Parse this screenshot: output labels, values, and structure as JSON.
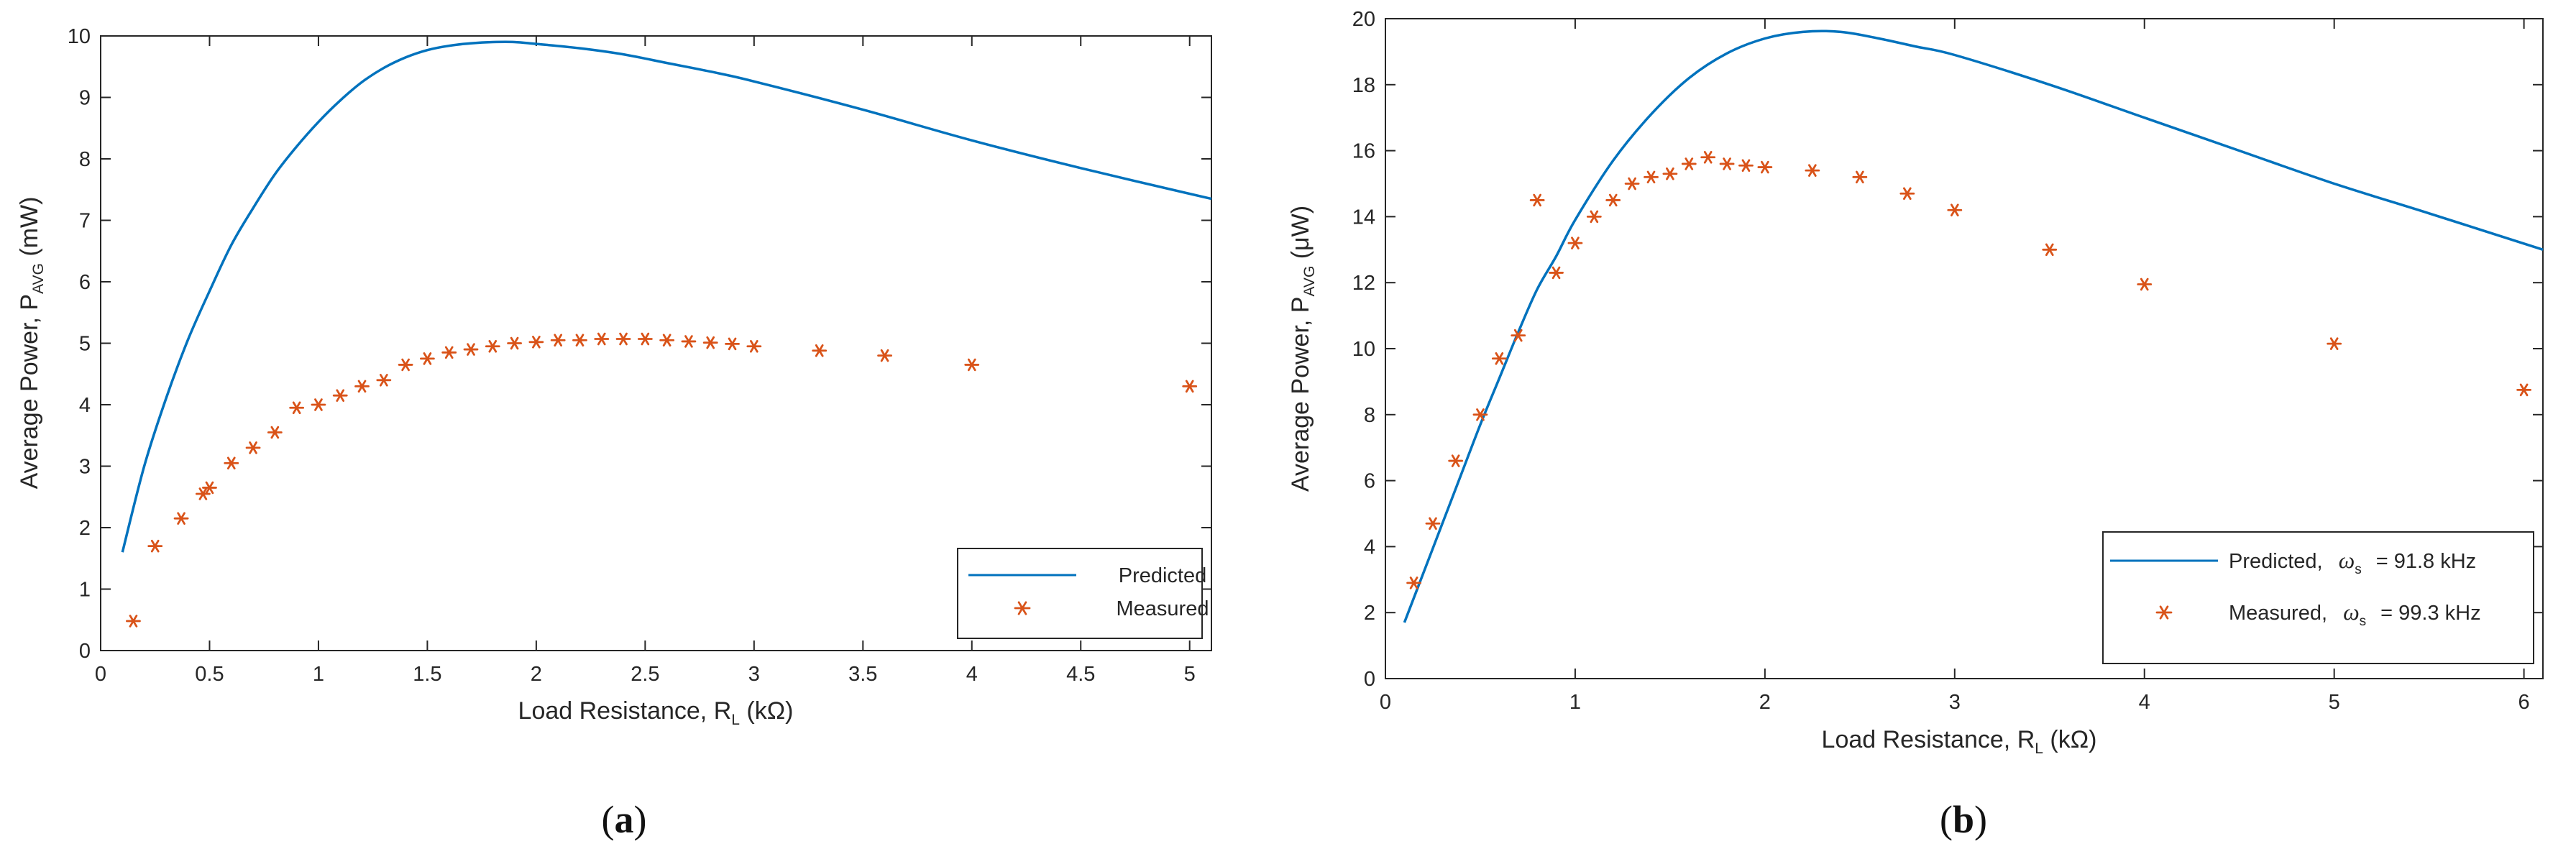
{
  "colors": {
    "predicted": "#0072BD",
    "measured": "#D95319",
    "axis": "#262626"
  },
  "chart_data": [
    {
      "panel": "(a)",
      "type": "line+scatter",
      "xlabel": {
        "main": "Load Resistance, R",
        "sub": "L",
        "unit": " (kΩ)"
      },
      "ylabel": {
        "main": "Average Power, P",
        "sub": "AVG",
        "unit": " (mW)"
      },
      "xlim": [
        0,
        5.1
      ],
      "ylim": [
        0,
        10
      ],
      "xticks": [
        0,
        0.5,
        1,
        1.5,
        2,
        2.5,
        3,
        3.5,
        4,
        4.5,
        5
      ],
      "xtick_labels": [
        "0",
        "0.5",
        "1",
        "1.5",
        "2",
        "2.5",
        "3",
        "3.5",
        "4",
        "4.5",
        "5"
      ],
      "yticks": [
        0,
        1,
        2,
        3,
        4,
        5,
        6,
        7,
        8,
        9,
        10
      ],
      "ytick_labels": [
        "0",
        "1",
        "2",
        "3",
        "4",
        "5",
        "6",
        "7",
        "8",
        "9",
        "10"
      ],
      "legend_position": "bottom-right",
      "series": [
        {
          "name": "Predicted",
          "legend": {
            "label": "Predicted",
            "symbol": "",
            "sub": "",
            "value": ""
          },
          "kind": "line",
          "x": [
            0.1,
            0.2,
            0.3,
            0.4,
            0.5,
            0.6,
            0.7,
            0.8,
            0.9,
            1.0,
            1.1,
            1.2,
            1.3,
            1.4,
            1.5,
            1.6,
            1.7,
            1.8,
            1.9,
            2.0,
            2.2,
            2.4,
            2.6,
            2.8,
            3.0,
            3.5,
            4.0,
            4.5,
            5.1
          ],
          "y": [
            1.6,
            3.0,
            4.1,
            5.05,
            5.85,
            6.6,
            7.2,
            7.75,
            8.2,
            8.6,
            8.95,
            9.25,
            9.48,
            9.65,
            9.77,
            9.84,
            9.88,
            9.9,
            9.9,
            9.87,
            9.8,
            9.7,
            9.56,
            9.42,
            9.26,
            8.8,
            8.3,
            7.85,
            7.35
          ]
        },
        {
          "name": "Measured",
          "legend": {
            "label": "Measured",
            "symbol": "",
            "sub": "",
            "value": ""
          },
          "kind": "scatter",
          "x": [
            0.15,
            0.25,
            0.37,
            0.47,
            0.5,
            0.6,
            0.7,
            0.8,
            0.9,
            1.0,
            1.1,
            1.2,
            1.3,
            1.4,
            1.5,
            1.6,
            1.7,
            1.8,
            1.9,
            2.0,
            2.1,
            2.2,
            2.3,
            2.4,
            2.5,
            2.6,
            2.7,
            2.8,
            2.9,
            3.0,
            3.3,
            3.6,
            4.0,
            5.0
          ],
          "y": [
            0.48,
            1.7,
            2.15,
            2.55,
            2.65,
            3.05,
            3.3,
            3.55,
            3.95,
            4.0,
            4.15,
            4.3,
            4.4,
            4.65,
            4.75,
            4.85,
            4.9,
            4.95,
            5.0,
            5.02,
            5.05,
            5.05,
            5.07,
            5.07,
            5.07,
            5.05,
            5.03,
            5.01,
            4.99,
            4.95,
            4.88,
            4.8,
            4.65,
            4.3
          ]
        }
      ]
    },
    {
      "panel": "(b)",
      "type": "line+scatter",
      "xlabel": {
        "main": "Load Resistance, R",
        "sub": "L",
        "unit": " (kΩ)"
      },
      "ylabel": {
        "main": "Average Power, P",
        "sub": "AVG",
        "unit": " (μW)"
      },
      "xlim": [
        0,
        6.1
      ],
      "ylim": [
        0,
        20
      ],
      "xticks": [
        0,
        1,
        2,
        3,
        4,
        5,
        6
      ],
      "xtick_labels": [
        "0",
        "1",
        "2",
        "3",
        "4",
        "5",
        "6"
      ],
      "yticks": [
        0,
        2,
        4,
        6,
        8,
        10,
        12,
        14,
        16,
        18,
        20
      ],
      "ytick_labels": [
        "0",
        "2",
        "4",
        "6",
        "8",
        "10",
        "12",
        "14",
        "16",
        "18",
        "20"
      ],
      "legend_position": "bottom-right",
      "series": [
        {
          "name": "Predicted",
          "legend": {
            "label": "Predicted,",
            "symbol": "ω",
            "sub": "s",
            "value": "= 91.8 kHz"
          },
          "kind": "line",
          "x": [
            0.1,
            0.2,
            0.3,
            0.4,
            0.5,
            0.6,
            0.7,
            0.8,
            0.9,
            1.0,
            1.2,
            1.4,
            1.6,
            1.8,
            2.0,
            2.2,
            2.4,
            2.6,
            2.8,
            3.0,
            3.5,
            4.0,
            4.5,
            5.0,
            5.5,
            6.1
          ],
          "y": [
            1.7,
            3.2,
            4.7,
            6.2,
            7.7,
            9.1,
            10.5,
            11.8,
            12.8,
            13.9,
            15.7,
            17.1,
            18.2,
            18.95,
            19.4,
            19.6,
            19.6,
            19.4,
            19.15,
            18.9,
            18.0,
            17.0,
            16.0,
            15.0,
            14.1,
            13.0
          ]
        },
        {
          "name": "Measured",
          "legend": {
            "label": "Measured,",
            "symbol": "ω",
            "sub": "s",
            "value": "= 99.3 kHz"
          },
          "kind": "scatter",
          "x": [
            0.15,
            0.25,
            0.37,
            0.5,
            0.6,
            0.7,
            0.8,
            0.9,
            1.0,
            1.1,
            1.2,
            1.3,
            1.4,
            1.5,
            1.6,
            1.7,
            1.8,
            1.9,
            2.0,
            2.25,
            2.5,
            2.75,
            3.0,
            3.5,
            4.0,
            5.0,
            6.0
          ],
          "y": [
            2.9,
            4.7,
            6.6,
            8.0,
            9.7,
            10.4,
            14.5,
            12.3,
            13.2,
            14.0,
            14.5,
            15.0,
            15.2,
            15.3,
            15.6,
            15.8,
            15.6,
            15.55,
            15.5,
            15.4,
            15.2,
            14.7,
            14.2,
            13.0,
            11.95,
            10.15,
            8.75
          ]
        }
      ]
    }
  ],
  "captions": {
    "a": {
      "open": "(",
      "letter": "a",
      "close": ")"
    },
    "b": {
      "open": "(",
      "letter": "b",
      "close": ")"
    }
  }
}
